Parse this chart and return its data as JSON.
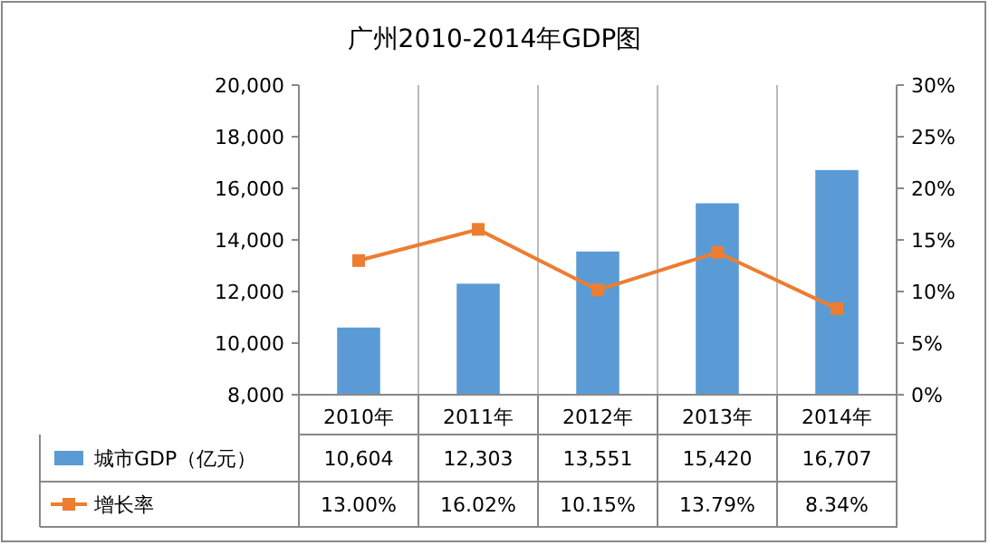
{
  "chart_data": {
    "type": "bar",
    "title": "广州2010-2014年GDP图",
    "categories": [
      "2010年",
      "2011年",
      "2012年",
      "2013年",
      "2014年"
    ],
    "series": [
      {
        "name": "城市GDP（亿元）",
        "color": "#5b9bd5",
        "values": [
          10604,
          12303,
          13551,
          15420,
          16707
        ],
        "value_labels": [
          "10,604",
          "12,303",
          "13,551",
          "15,420",
          "16,707"
        ]
      },
      {
        "name": "增长率",
        "type": "line",
        "axis": "y2",
        "color": "#ed7d31",
        "marker": "square",
        "values": [
          13.0,
          16.02,
          10.15,
          13.79,
          8.34
        ],
        "value_labels": [
          "13.00%",
          "16.02%",
          "10.15%",
          "13.79%",
          "8.34%"
        ]
      }
    ],
    "ylim": [
      8000,
      20000
    ],
    "yticks": [
      {
        "value": 8000,
        "label": "8,000"
      },
      {
        "value": 10000,
        "label": "10,000"
      },
      {
        "value": 12000,
        "label": "12,000"
      },
      {
        "value": 14000,
        "label": "14,000"
      },
      {
        "value": 16000,
        "label": "16,000"
      },
      {
        "value": 18000,
        "label": "18,000"
      },
      {
        "value": 20000,
        "label": "20,000"
      }
    ],
    "y2lim": [
      0,
      30
    ],
    "y2ticks": [
      {
        "value": 0,
        "label": "0%"
      },
      {
        "value": 5,
        "label": "5%"
      },
      {
        "value": 10,
        "label": "10%"
      },
      {
        "value": 15,
        "label": "15%"
      },
      {
        "value": 20,
        "label": "20%"
      },
      {
        "value": 25,
        "label": "25%"
      },
      {
        "value": 30,
        "label": "30%"
      }
    ],
    "legend": "bottom"
  }
}
